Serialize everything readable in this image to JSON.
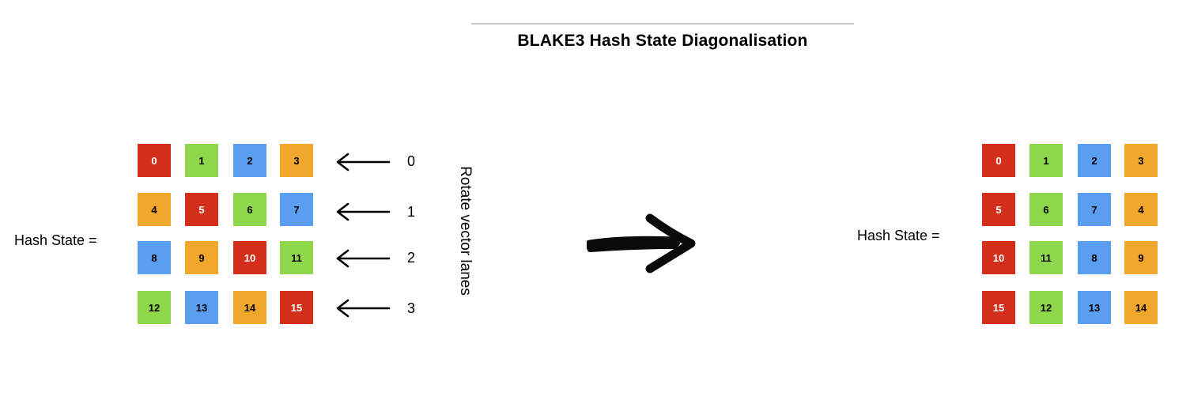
{
  "title": "BLAKE3 Hash State Diagonalisation",
  "left": {
    "label": "Hash State =",
    "rows": [
      [
        {
          "value": "0",
          "color": "red"
        },
        {
          "value": "1",
          "color": "green"
        },
        {
          "value": "2",
          "color": "blue"
        },
        {
          "value": "3",
          "color": "orange"
        }
      ],
      [
        {
          "value": "4",
          "color": "orange"
        },
        {
          "value": "5",
          "color": "red"
        },
        {
          "value": "6",
          "color": "green"
        },
        {
          "value": "7",
          "color": "blue"
        }
      ],
      [
        {
          "value": "8",
          "color": "blue"
        },
        {
          "value": "9",
          "color": "orange"
        },
        {
          "value": "10",
          "color": "red"
        },
        {
          "value": "11",
          "color": "green"
        }
      ],
      [
        {
          "value": "12",
          "color": "green"
        },
        {
          "value": "13",
          "color": "blue"
        },
        {
          "value": "14",
          "color": "orange"
        },
        {
          "value": "15",
          "color": "red"
        }
      ]
    ]
  },
  "rotation": {
    "label": "Rotate vector lanes",
    "amounts": [
      "0",
      "1",
      "2",
      "3"
    ]
  },
  "right": {
    "label": "Hash State =",
    "rows": [
      [
        {
          "value": "0",
          "color": "red"
        },
        {
          "value": "1",
          "color": "green"
        },
        {
          "value": "2",
          "color": "blue"
        },
        {
          "value": "3",
          "color": "orange"
        }
      ],
      [
        {
          "value": "5",
          "color": "red"
        },
        {
          "value": "6",
          "color": "green"
        },
        {
          "value": "7",
          "color": "blue"
        },
        {
          "value": "4",
          "color": "orange"
        }
      ],
      [
        {
          "value": "10",
          "color": "red"
        },
        {
          "value": "11",
          "color": "green"
        },
        {
          "value": "8",
          "color": "blue"
        },
        {
          "value": "9",
          "color": "orange"
        }
      ],
      [
        {
          "value": "15",
          "color": "red"
        },
        {
          "value": "12",
          "color": "green"
        },
        {
          "value": "13",
          "color": "blue"
        },
        {
          "value": "14",
          "color": "orange"
        }
      ]
    ]
  },
  "colors": {
    "red": "#d32f1a",
    "green": "#8ed64a",
    "blue": "#5a9ef2",
    "orange": "#f0a72c"
  }
}
